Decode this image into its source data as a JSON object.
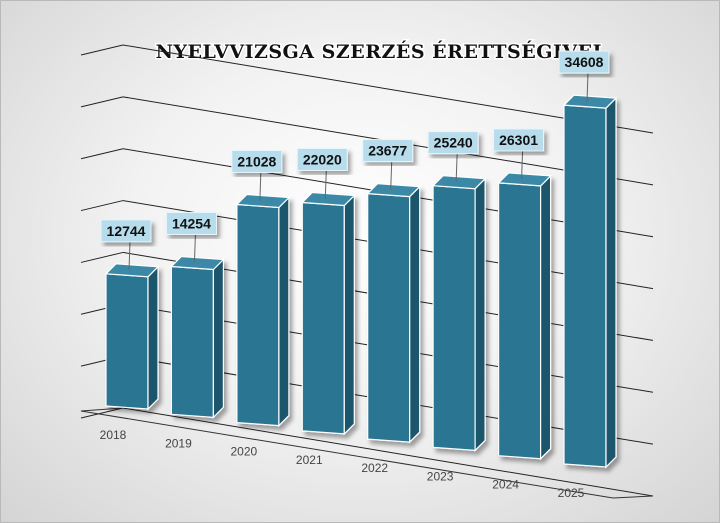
{
  "chart_data": {
    "type": "bar",
    "title": "NYELVVIZSGA SZERZÉS ÉRETTSÉGIVEL",
    "categories": [
      "2018",
      "2019",
      "2020",
      "2021",
      "2022",
      "2023",
      "2024",
      "2025"
    ],
    "values": [
      12744,
      14254,
      21028,
      22020,
      23677,
      25240,
      26301,
      34608
    ],
    "xlabel": "",
    "ylabel": "",
    "ylim": [
      0,
      35000
    ],
    "grid": true,
    "legend": "none",
    "style": "3d-perspective",
    "colors": {
      "bar_front": "#2b7591",
      "bar_side": "#1d566c",
      "bar_top": "#3b89a6",
      "label_box": "#b7dcec"
    }
  }
}
